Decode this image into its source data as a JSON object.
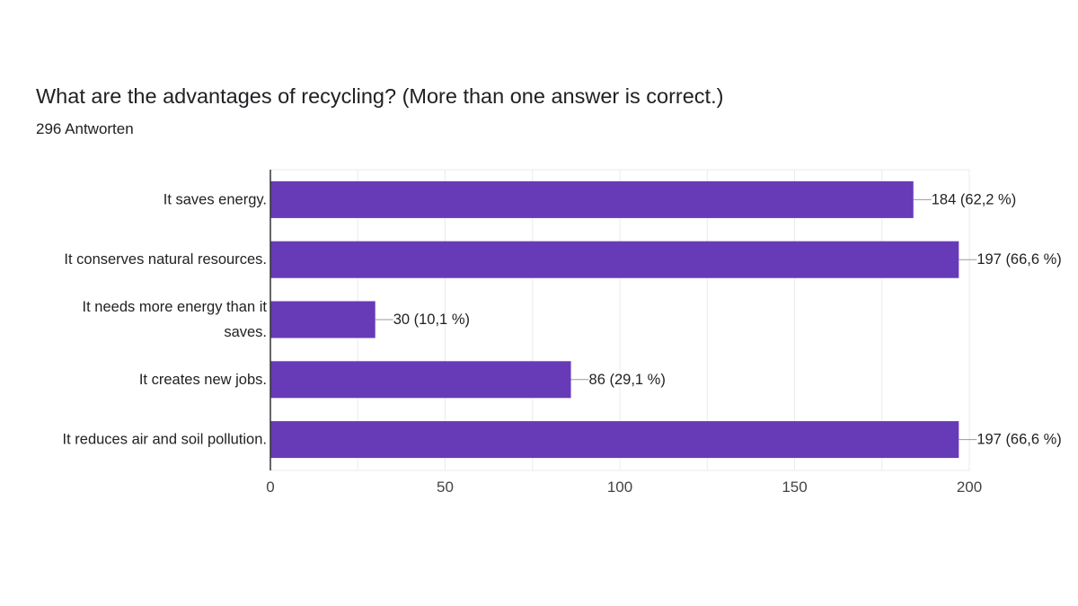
{
  "title": "What are the advantages of recycling? (More than one answer is correct.)",
  "response_count": "296 Antworten",
  "colors": {
    "bar": "#673ab7",
    "grid": "#ebebeb",
    "axis": "#333333",
    "leader": "#999999"
  },
  "chart_data": {
    "type": "bar",
    "orientation": "horizontal",
    "categories": [
      "It saves energy.",
      "It conserves natural resources.",
      "It needs more energy than it saves.",
      "It creates new jobs.",
      "It reduces air and soil pollution."
    ],
    "category_lines": [
      [
        "It saves energy."
      ],
      [
        "It conserves natural resources."
      ],
      [
        "It needs more energy than it",
        "saves."
      ],
      [
        "It creates new jobs."
      ],
      [
        "It reduces air and soil pollution."
      ]
    ],
    "values": [
      184,
      197,
      30,
      86,
      197
    ],
    "value_labels": [
      "184 (62,2 %)",
      "197 (66,6 %)",
      "30 (10,1 %)",
      "86 (29,1 %)",
      "197 (66,6 %)"
    ],
    "xlim": [
      0,
      200
    ],
    "xticks": [
      0,
      50,
      100,
      150,
      200
    ],
    "grid": true,
    "legend": "none"
  }
}
